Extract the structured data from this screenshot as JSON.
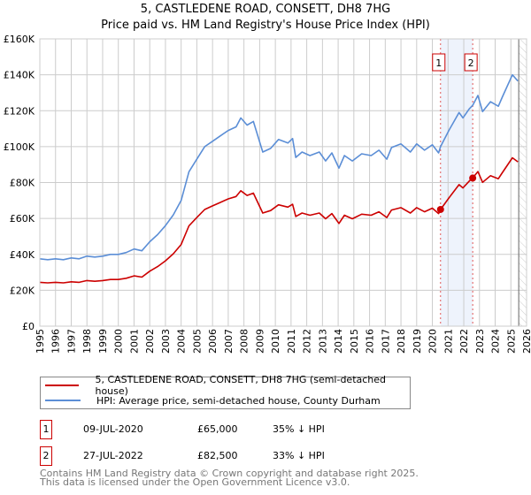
{
  "title": "5, CASTLEDENE ROAD, CONSETT, DH8 7HG",
  "subtitle": "Price paid vs. HM Land Registry's House Price Index (HPI)",
  "chart_data": {
    "type": "line",
    "title": "5, CASTLEDENE ROAD, CONSETT, DH8 7HG",
    "subtitle": "Price paid vs. HM Land Registry's House Price Index (HPI)",
    "xlabel": "",
    "ylabel": "",
    "xlim": [
      1995,
      2026
    ],
    "ylim": [
      0,
      160
    ],
    "y_unit": "£ thousands",
    "yticks": [
      0,
      20,
      40,
      60,
      80,
      100,
      120,
      140,
      160
    ],
    "ytick_labels": [
      "£0",
      "£20K",
      "£40K",
      "£60K",
      "£80K",
      "£100K",
      "£120K",
      "£140K",
      "£160K"
    ],
    "xticks": [
      1995,
      1996,
      1997,
      1998,
      1999,
      2000,
      2001,
      2002,
      2003,
      2004,
      2005,
      2006,
      2007,
      2008,
      2009,
      2010,
      2011,
      2012,
      2013,
      2014,
      2015,
      2016,
      2017,
      2018,
      2019,
      2020,
      2021,
      2022,
      2023,
      2024,
      2025,
      2026
    ],
    "grid": true,
    "x": [
      1995.0,
      1995.5,
      1996.0,
      1996.5,
      1997.0,
      1997.5,
      1998.0,
      1998.5,
      1999.0,
      1999.5,
      2000.0,
      2000.5,
      2001.0,
      2001.5,
      2002.0,
      2002.5,
      2003.0,
      2003.5,
      2004.0,
      2004.5,
      2005.0,
      2005.5,
      2006.0,
      2006.5,
      2007.0,
      2007.5,
      2007.8,
      2008.2,
      2008.6,
      2009.2,
      2009.7,
      2010.2,
      2010.8,
      2011.1,
      2011.3,
      2011.7,
      2012.2,
      2012.8,
      2013.2,
      2013.6,
      2014.05,
      2014.4,
      2014.9,
      2015.5,
      2016.1,
      2016.6,
      2017.1,
      2017.4,
      2018.0,
      2018.6,
      2019.0,
      2019.5,
      2020.0,
      2020.4,
      2020.52,
      2021.05,
      2021.7,
      2021.95,
      2022.35,
      2022.57,
      2022.9,
      2023.2,
      2023.7,
      2024.2,
      2024.45,
      2025.1,
      2025.45
    ],
    "series": [
      {
        "name": "5, CASTLEDENE ROAD, CONSETT, DH8 7HG (semi-detached house)",
        "color": "#cc0000",
        "values": [
          24.4,
          24.1,
          24.4,
          24.1,
          24.7,
          24.4,
          25.4,
          25,
          25.4,
          26,
          26,
          26.7,
          28,
          27.3,
          30.6,
          33.2,
          36.4,
          40.3,
          45.5,
          55.9,
          60.5,
          65,
          67,
          68.9,
          70.9,
          72.2,
          75.4,
          72.8,
          74.1,
          63,
          64.4,
          67.6,
          66.3,
          67.9,
          61.1,
          63,
          61.8,
          63,
          59.8,
          62.7,
          57.2,
          61.8,
          59.8,
          62.4,
          61.8,
          63.7,
          60.5,
          64.7,
          66,
          63,
          66,
          63.7,
          65.7,
          62.7,
          65,
          71.4,
          78.8,
          77,
          80.8,
          82.5,
          86.1,
          80.1,
          83.8,
          82.1,
          85.4,
          93.8,
          91.5
        ]
      },
      {
        "name": "HPI: Average price, semi-detached house, County Durham",
        "color": "#5b8ed6",
        "values": [
          37.5,
          37,
          37.5,
          37,
          38,
          37.5,
          39,
          38.5,
          39,
          40,
          40,
          41,
          43,
          42,
          47,
          51,
          56,
          62,
          70,
          86,
          93,
          100,
          103,
          106,
          109,
          111,
          116,
          112,
          114,
          97,
          99,
          104,
          102,
          104.5,
          94,
          97,
          95,
          97,
          92,
          96.5,
          88,
          95,
          92,
          96,
          95,
          98,
          93,
          99.5,
          101.5,
          97,
          101.5,
          98,
          101,
          96.5,
          100,
          109,
          119,
          116,
          121,
          123,
          128.5,
          119.5,
          125,
          122.5,
          127.5,
          140,
          136.5
        ]
      }
    ],
    "sales": [
      {
        "label": "1",
        "x": 2020.52,
        "y": 65
      },
      {
        "label": "2",
        "x": 2022.57,
        "y": 82.5
      }
    ],
    "shaded_range": [
      2020.52,
      2022.57
    ],
    "forecast_hatch_from": 2025.5,
    "legend_placement": "below"
  },
  "legend": [
    "5, CASTLEDENE ROAD, CONSETT, DH8 7HG (semi-detached house)",
    "HPI: Average price, semi-detached house, County Durham"
  ],
  "transactions": [
    {
      "num": "1",
      "date": "09-JUL-2020",
      "price": "£65,000",
      "hpi": "35% ↓ HPI"
    },
    {
      "num": "2",
      "date": "27-JUL-2022",
      "price": "£82,500",
      "hpi": "33% ↓ HPI"
    }
  ],
  "footer": [
    "Contains HM Land Registry data © Crown copyright and database right 2025.",
    "This data is licensed under the Open Government Licence v3.0."
  ]
}
